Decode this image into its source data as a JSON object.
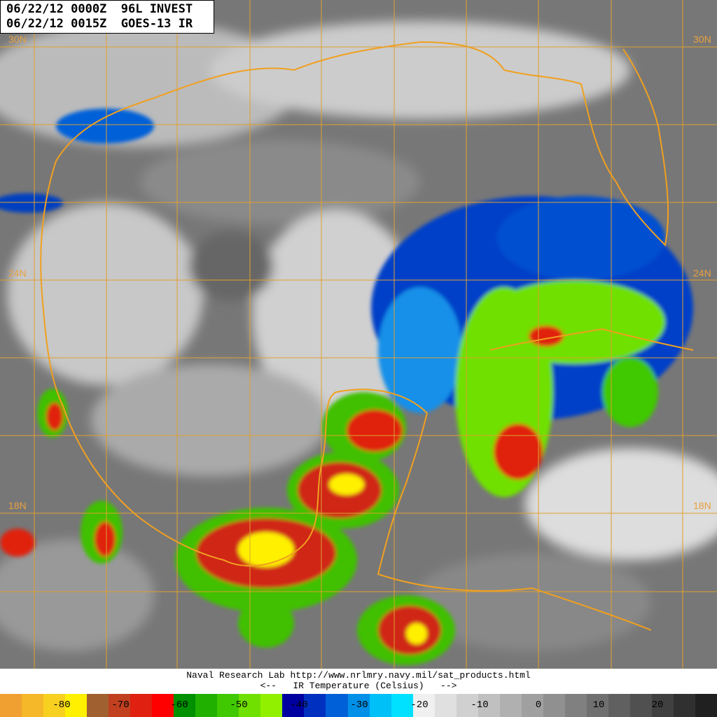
{
  "header": {
    "line1": "06/22/12 0000Z  96L INVEST",
    "line2": "06/22/12 0015Z  GOES-13 IR"
  },
  "latitude_labels": [
    "30N",
    "24N",
    "18N"
  ],
  "credit": {
    "line1": "Naval Research Lab http://www.nrlmry.navy.mil/sat_products.html",
    "line2": "<--   IR Temperature (Celsius)   -->"
  },
  "colorbar": {
    "labels": [
      "-80",
      "-70",
      "-60",
      "-50",
      "-40",
      "-30",
      "-20",
      "-10",
      "0",
      "10",
      "20"
    ],
    "colors": [
      "#f0a030",
      "#f5b828",
      "#f8d020",
      "#fff000",
      "#a06030",
      "#c04020",
      "#e02010",
      "#ff0000",
      "#009000",
      "#20b000",
      "#40c800",
      "#70e000",
      "#90f000",
      "#0000a0",
      "#0030c0",
      "#0060d8",
      "#0090e8",
      "#00c0f8",
      "#00e0ff",
      "#f0f0f0",
      "#e0e0e0",
      "#d0d0d0",
      "#c0c0c0",
      "#b0b0b0",
      "#a0a0a0",
      "#909090",
      "#808080",
      "#707070",
      "#606060",
      "#505050",
      "#404040",
      "#303030",
      "#202020"
    ],
    "unit": "Celsius"
  },
  "map_colors": {
    "coastline": "#f0a020",
    "grid": "#e0a030"
  }
}
